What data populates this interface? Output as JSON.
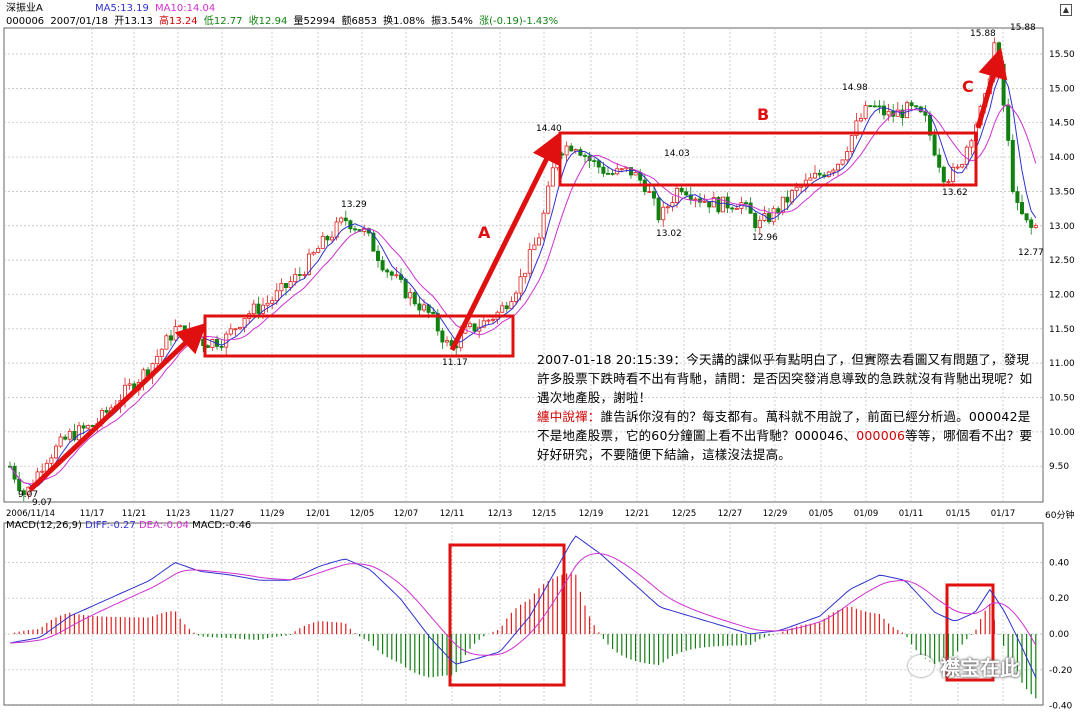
{
  "header": {
    "name": "深振业A",
    "code": "000006",
    "date": "2007/01/18",
    "open": "开13.13",
    "high": "高13.24",
    "low": "低12.77",
    "close": "收12.94",
    "volume": "量52994",
    "amount": "额6853",
    "turnover": "换1.08%",
    "amplitude": "振3.54%",
    "change": "涨(-0.19)-1.43%",
    "ma5": "MA5:13.19",
    "ma10": "MA10:14.04"
  },
  "macd_header": {
    "title": "MACD(12,26,9)",
    "diff": "DIFF:-0.27",
    "dea": "DEA:-0.04",
    "macd": "MACD:-0.46"
  },
  "price_axis": [
    "15.50",
    "15.00",
    "14.50",
    "14.00",
    "13.50",
    "13.00",
    "12.50",
    "12.00",
    "11.50",
    "11.00",
    "10.50",
    "10.00",
    "9.50"
  ],
  "macd_axis": [
    "0.40",
    "0.20",
    "0.00",
    "-0.20",
    "-0.40"
  ],
  "date_axis": [
    "2006/11/14",
    "11/17",
    "11/21",
    "11/23",
    "11/27",
    "11/29",
    "12/01",
    "12/05",
    "12/07",
    "12/11",
    "12/13",
    "12/15",
    "12/19",
    "12/21",
    "12/25",
    "12/27",
    "12/29",
    "01/05",
    "01/09",
    "01/11",
    "01/15",
    "01/17"
  ],
  "period_label": "60分钟",
  "price_labels": {
    "low_start": "9.07",
    "low_start_b": "9.07",
    "peak1": "13.29",
    "trough1": "11.17",
    "peak2": "14.40",
    "mid1": "14.03",
    "trough2": "13.02",
    "trough3": "12.96",
    "peak3": "14.98",
    "trough4": "13.62",
    "peak4": "15.88",
    "peak4_b": "15.88",
    "end_low": "12.77"
  },
  "annotations": {
    "label_a": "A",
    "label_b": "B",
    "label_c": "C"
  },
  "commentary": {
    "question": "2007-01-18 20:15:39：今天講的課似乎有點明白了，但實際去看圖又有問題了，發現許多股票下跌時看不出有背馳，請問：是否因突發消息導致的急跌就沒有背馳出現呢？如遇次地產股，謝啦！",
    "answer_label": "纏中說禪：",
    "answer_part1": "誰告訴你沒有的？每支都有。萬科就不用說了，前面已經分析過。000042是不是地產股票，它的60分鐘圖上看不出背馳？000046、",
    "answer_highlight": "000006",
    "answer_part2": "等等，哪個看不出？要好好研究，不要隨便下結論，這樣沒法提高。"
  },
  "watermark": "襟宝在此",
  "colors": {
    "up": "#e02020",
    "down": "#108010",
    "ma5": "#3030d0",
    "ma10": "#d030d0",
    "annotation": "#e01010"
  }
}
